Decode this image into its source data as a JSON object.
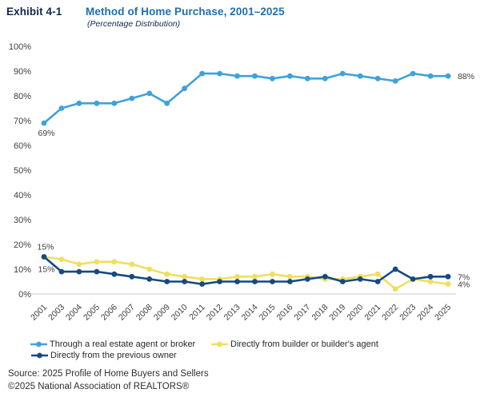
{
  "header": {
    "exhibit_label": "Exhibit 4-1",
    "title": "Method of Home Purchase, 2001–2025",
    "subtitle": "(Percentage Distribution)"
  },
  "chart_data": {
    "type": "line",
    "x_labels": [
      "2001",
      "2003",
      "2004",
      "2005",
      "2006",
      "2007",
      "2008",
      "2009",
      "2010",
      "2011",
      "2012",
      "2013",
      "2014",
      "2015",
      "2016",
      "2017",
      "2018",
      "2019",
      "2020",
      "2021",
      "2022",
      "2023",
      "2024",
      "2025"
    ],
    "ylim": [
      0,
      100
    ],
    "ytick_step": 10,
    "ytick_labels": [
      "100%",
      "90%",
      "80%",
      "70%",
      "60%",
      "50%",
      "40%",
      "30%",
      "20%",
      "10%",
      "0%"
    ],
    "grid": false,
    "legend_position": "bottom",
    "series": [
      {
        "name": "Through a real estate agent or broker",
        "color": "#3EA2DB",
        "values": [
          69,
          75,
          77,
          77,
          77,
          79,
          81,
          77,
          83,
          89,
          89,
          88,
          88,
          87,
          88,
          87,
          87,
          89,
          88,
          87,
          86,
          89,
          88,
          88
        ]
      },
      {
        "name": "Directly from builder or builder's agent",
        "color": "#EFDF5E",
        "values": [
          15,
          14,
          12,
          13,
          13,
          12,
          10,
          8,
          7,
          6,
          6,
          7,
          7,
          8,
          7,
          7,
          6,
          6,
          7,
          8,
          2,
          6,
          5,
          4
        ]
      },
      {
        "name": "Directly from the previous owner",
        "color": "#164A7F",
        "values": [
          15,
          9,
          9,
          9,
          8,
          7,
          6,
          5,
          5,
          4,
          5,
          5,
          5,
          5,
          5,
          6,
          7,
          5,
          6,
          5,
          10,
          6,
          7,
          7
        ]
      }
    ],
    "annotations": [
      {
        "text": "69%",
        "series": 0,
        "index": 0,
        "position": "below"
      },
      {
        "text": "15%",
        "series": 2,
        "index": 0,
        "position": "above"
      },
      {
        "text": "15%",
        "series": 2,
        "index": 0,
        "position": "below"
      },
      {
        "text": "88%",
        "series": 0,
        "index": 23,
        "position": "right"
      },
      {
        "text": "7%",
        "series": 2,
        "index": 23,
        "position": "right"
      },
      {
        "text": "4%",
        "series": 1,
        "index": 23,
        "position": "right"
      }
    ]
  },
  "source": {
    "line1": "Source: 2025 Profile of Home Buyers and Sellers",
    "line2": "©2025 National Association of REALTORS®"
  }
}
